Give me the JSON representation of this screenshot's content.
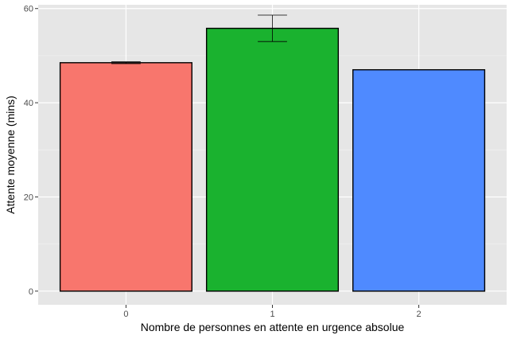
{
  "chart_data": {
    "type": "bar",
    "categories": [
      "0",
      "1",
      "2"
    ],
    "values": [
      48.5,
      55.8,
      47.0
    ],
    "error_bars": [
      {
        "low": 48.3,
        "high": 48.7
      },
      {
        "low": 53.0,
        "high": 58.6
      },
      null
    ],
    "colors": [
      "#F8766D",
      "#1AB22F",
      "#4F8AFF"
    ],
    "xlabel": "Nombre de personnes en attente en urgence absolue",
    "ylabel": "Attente moyenne (mins)",
    "ylim": [
      -2.9,
      60.8
    ],
    "y_ticks": [
      0,
      20,
      40,
      60
    ],
    "y_tick_labels": [
      "0",
      "20",
      "40",
      "60"
    ],
    "grid": true,
    "panel_background": "#E6E6E6",
    "legend": "none"
  }
}
